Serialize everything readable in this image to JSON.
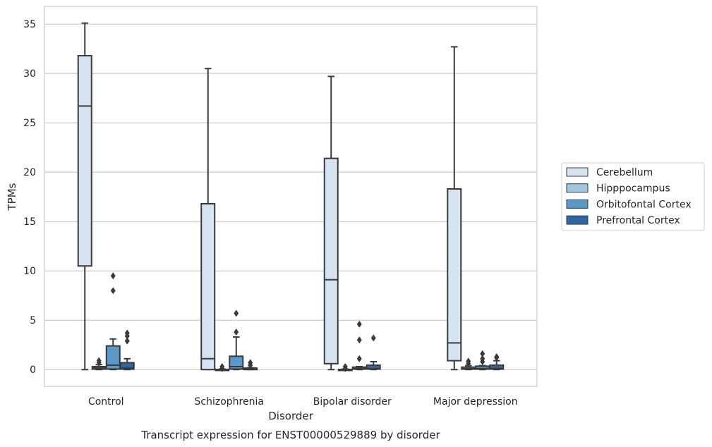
{
  "chart_data": {
    "type": "box",
    "title": "",
    "caption": "Transcript expression for ENST00000529889 by disorder",
    "xlabel": "Disorder",
    "ylabel": "TPMs",
    "ylim": [
      -1.7,
      36.8
    ],
    "yticks": [
      0,
      5,
      10,
      15,
      20,
      25,
      30,
      35
    ],
    "grid": "horizontal",
    "legend_position": "right",
    "categories": [
      "Control",
      "Schizophrenia",
      "Bipolar disorder",
      "Major depression"
    ],
    "series": [
      {
        "name": "Cerebellum",
        "color": "#d6e3f0",
        "boxes": [
          {
            "q1": 10.5,
            "median": 26.7,
            "q3": 31.8,
            "whislo": 0,
            "whishi": 35.1,
            "fliers": []
          },
          {
            "q1": 0,
            "median": 1.1,
            "q3": 16.8,
            "whislo": 0,
            "whishi": 30.5,
            "fliers": []
          },
          {
            "q1": 0.6,
            "median": 9.1,
            "q3": 21.4,
            "whislo": 0,
            "whishi": 29.7,
            "fliers": []
          },
          {
            "q1": 0.9,
            "median": 2.7,
            "q3": 18.3,
            "whislo": 0,
            "whishi": 32.7,
            "fliers": []
          }
        ]
      },
      {
        "name": "Hipppocampus",
        "color": "#9dc7de",
        "boxes": [
          {
            "q1": 0.05,
            "median": 0.15,
            "q3": 0.3,
            "whislo": 0,
            "whishi": 0.5,
            "fliers": [
              0.7,
              0.9
            ]
          },
          {
            "q1": 0,
            "median": 0,
            "q3": 0.02,
            "whislo": 0,
            "whishi": 0.05,
            "fliers": [
              0.1,
              0.3
            ]
          },
          {
            "q1": 0,
            "median": 0,
            "q3": 0.02,
            "whislo": 0,
            "whishi": 0.05,
            "fliers": [
              0.1,
              0.3
            ]
          },
          {
            "q1": 0.05,
            "median": 0.1,
            "q3": 0.25,
            "whislo": 0,
            "whishi": 0.4,
            "fliers": [
              0.6,
              0.85
            ]
          }
        ]
      },
      {
        "name": "Orbitofontal Cortex",
        "color": "#5a99c8",
        "boxes": [
          {
            "q1": 0.05,
            "median": 0.45,
            "q3": 2.4,
            "whislo": 0,
            "whishi": 3.1,
            "fliers": [
              8.0,
              9.5
            ]
          },
          {
            "q1": 0.05,
            "median": 0.3,
            "q3": 1.35,
            "whislo": 0,
            "whishi": 3.3,
            "fliers": [
              3.8,
              5.7
            ]
          },
          {
            "q1": 0.05,
            "median": 0.1,
            "q3": 0.25,
            "whislo": 0,
            "whishi": 0.3,
            "fliers": [
              1.1,
              3.0,
              4.6
            ]
          },
          {
            "q1": 0.05,
            "median": 0.1,
            "q3": 0.35,
            "whislo": 0,
            "whishi": 0.4,
            "fliers": [
              0.8,
              1.1,
              1.6
            ]
          }
        ]
      },
      {
        "name": "Prefrontal Cortex",
        "color": "#2c68a8",
        "boxes": [
          {
            "q1": 0.05,
            "median": 0.15,
            "q3": 0.7,
            "whislo": 0,
            "whishi": 1.1,
            "fliers": [
              2.9,
              3.4,
              3.7
            ]
          },
          {
            "q1": 0,
            "median": 0.05,
            "q3": 0.15,
            "whislo": 0,
            "whishi": 0.2,
            "fliers": [
              0.45,
              0.7
            ]
          },
          {
            "q1": 0.05,
            "median": 0.1,
            "q3": 0.45,
            "whislo": 0,
            "whishi": 0.8,
            "fliers": [
              3.2
            ]
          },
          {
            "q1": 0.05,
            "median": 0.1,
            "q3": 0.45,
            "whislo": 0,
            "whishi": 0.9,
            "fliers": [
              1.2,
              1.3
            ]
          }
        ]
      }
    ]
  }
}
